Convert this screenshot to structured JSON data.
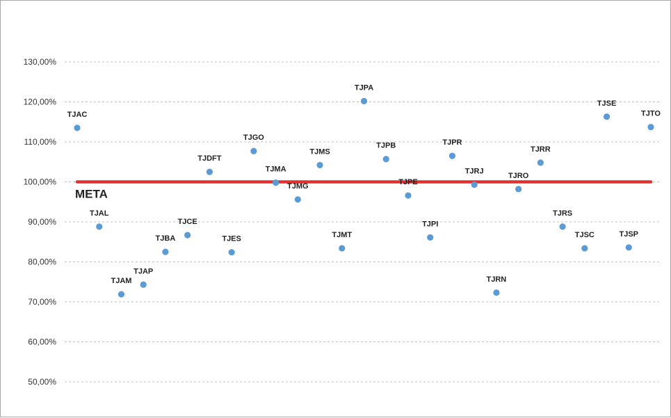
{
  "chart_data": {
    "type": "scatter",
    "title": "",
    "xlabel": "",
    "ylabel": "",
    "ylim": [
      0.42,
      1.38
    ],
    "y_ticks": [
      0.5,
      0.6,
      0.7,
      0.8,
      0.9,
      1.0,
      1.1,
      1.2,
      1.3
    ],
    "y_tick_labels": [
      "50,00%",
      "60,00%",
      "70,00%",
      "80,00%",
      "90,00%",
      "100,00%",
      "110,00%",
      "120,00%",
      "130,00%"
    ],
    "grid": "horizontal dashed",
    "point_color": "#5b9bd5",
    "target": {
      "label": "META",
      "value": 1.0,
      "color": "#e03030"
    },
    "points": [
      {
        "label": "TJAC",
        "value": 1.135
      },
      {
        "label": "TJAL",
        "value": 0.888
      },
      {
        "label": "TJAM",
        "value": 0.719
      },
      {
        "label": "TJAP",
        "value": 0.743
      },
      {
        "label": "TJBA",
        "value": 0.825
      },
      {
        "label": "TJCE",
        "value": 0.867
      },
      {
        "label": "TJDFT",
        "value": 1.025
      },
      {
        "label": "TJES",
        "value": 0.824
      },
      {
        "label": "TJGO",
        "value": 1.077
      },
      {
        "label": "TJMA",
        "value": 0.998
      },
      {
        "label": "TJMG",
        "value": 0.956
      },
      {
        "label": "TJMS",
        "value": 1.042
      },
      {
        "label": "TJMT",
        "value": 0.834
      },
      {
        "label": "TJPA",
        "value": 1.202
      },
      {
        "label": "TJPB",
        "value": 1.057
      },
      {
        "label": "TJPE",
        "value": 0.966
      },
      {
        "label": "TJPI",
        "value": 0.861
      },
      {
        "label": "TJPR",
        "value": 1.065
      },
      {
        "label": "TJRJ",
        "value": 0.993
      },
      {
        "label": "TJRN",
        "value": 0.723
      },
      {
        "label": "TJRO",
        "value": 0.982
      },
      {
        "label": "TJRR",
        "value": 1.048
      },
      {
        "label": "TJRS",
        "value": 0.888
      },
      {
        "label": "TJSC",
        "value": 0.834
      },
      {
        "label": "TJSE",
        "value": 1.163
      },
      {
        "label": "TJSP",
        "value": 0.836
      },
      {
        "label": "TJTO",
        "value": 1.137
      }
    ]
  }
}
